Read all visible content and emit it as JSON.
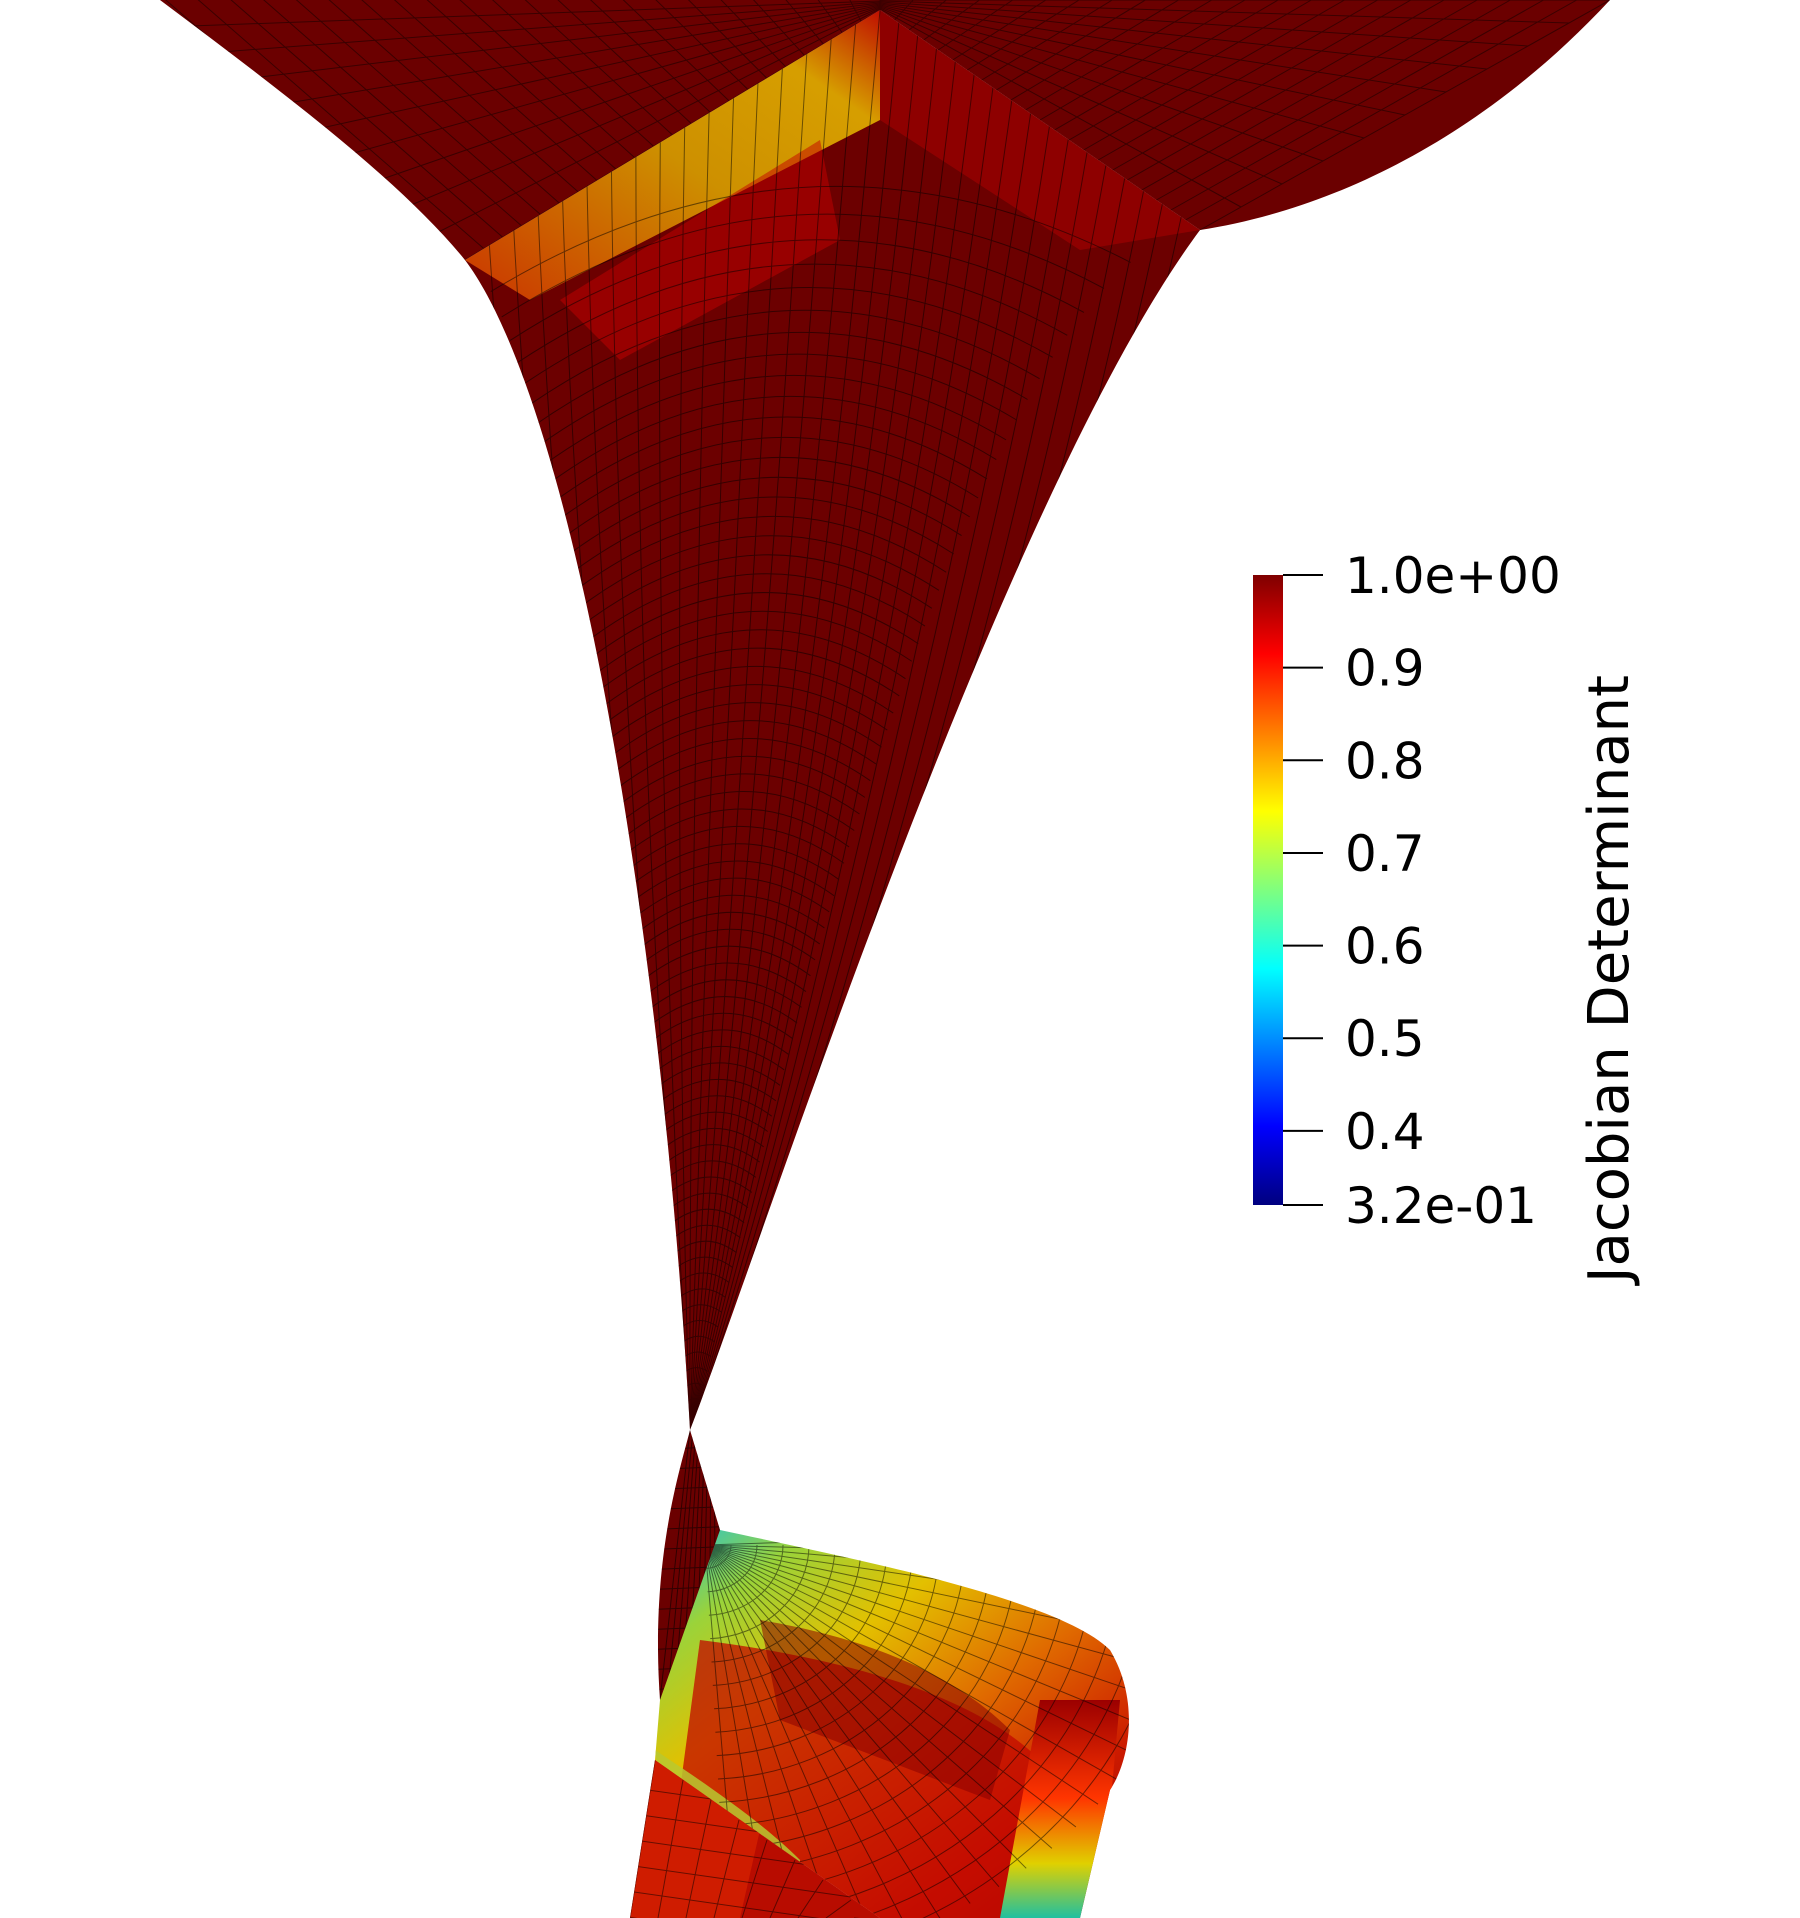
{
  "legend": {
    "title": "Jacobian Determinant",
    "max_label": "1.0e+00",
    "min_label": "3.2e-01",
    "ticks": [
      {
        "value": 1.0,
        "label": "1.0e+00"
      },
      {
        "value": 0.9,
        "label": "0.9"
      },
      {
        "value": 0.8,
        "label": "0.8"
      },
      {
        "value": 0.7,
        "label": "0.7"
      },
      {
        "value": 0.6,
        "label": "0.6"
      },
      {
        "value": 0.5,
        "label": "0.5"
      },
      {
        "value": 0.4,
        "label": "0.4"
      },
      {
        "value": 0.32,
        "label": "3.2e-01"
      }
    ],
    "range": [
      0.32,
      1.0
    ],
    "colormap": [
      "#00007f",
      "#0000ff",
      "#007fff",
      "#00ffff",
      "#7fff7f",
      "#ffff00",
      "#ff7f00",
      "#ff0000",
      "#7f0000"
    ]
  },
  "colors": {
    "mesh_dominant": "#6b0000",
    "mesh_lines": "#000000",
    "background": "#ffffff"
  }
}
